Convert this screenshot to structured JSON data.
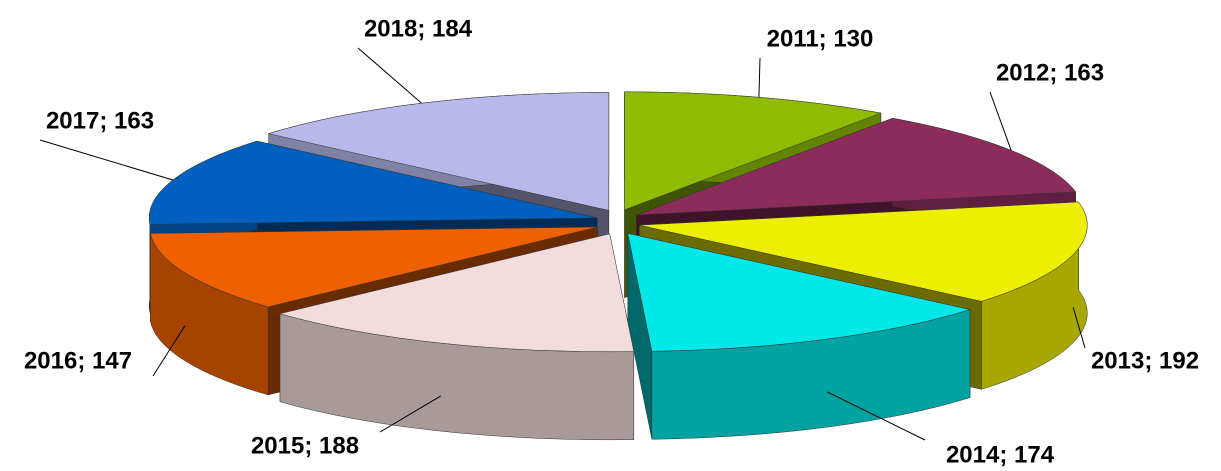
{
  "chart_data": {
    "type": "pie3d",
    "categories": [
      "2011",
      "2012",
      "2013",
      "2014",
      "2015",
      "2016",
      "2017",
      "2018"
    ],
    "values": [
      130,
      163,
      192,
      174,
      188,
      147,
      163,
      184
    ],
    "value_labels": [
      "2011; 130",
      "2012; 163",
      "2013; 192",
      "2014; 174",
      "2015; 188",
      "2016; 147",
      "2017; 163",
      "2018; 184"
    ],
    "colors": [
      "#8fbc00",
      "#8b2c5a",
      "#eeee00",
      "#00e8e8",
      "#f2dcdc",
      "#ee6000",
      "#0060c0",
      "#b8b8ea"
    ]
  }
}
